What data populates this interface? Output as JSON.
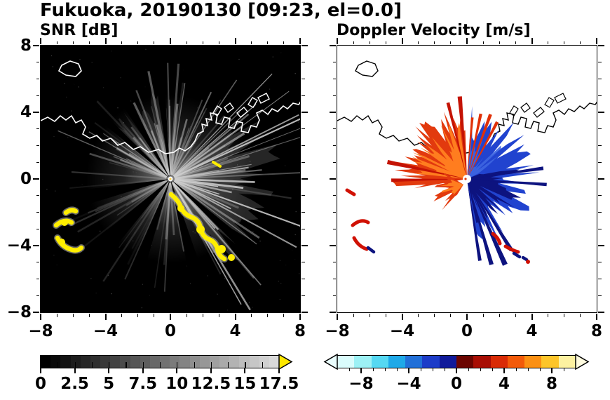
{
  "header": {
    "title": "Fukuoka, 20190130 [09:23, el=0.0]"
  },
  "panels": {
    "snr": {
      "title": "SNR [dB]"
    },
    "velocity": {
      "title": "Doppler Velocity [m/s]"
    }
  },
  "axes": {
    "xlim": [
      -8,
      8
    ],
    "ylim": [
      -8,
      8
    ],
    "x_tick_labels": [
      "−8",
      "−4",
      "0",
      "4",
      "8"
    ],
    "y_tick_labels": [
      "8",
      "4",
      "0",
      "−4",
      "−8"
    ]
  },
  "colorbars": {
    "snr": {
      "tick_labels": [
        "0",
        "2.5",
        "5",
        "7.5",
        "10",
        "12.5",
        "15",
        "17.5"
      ],
      "tick_values": [
        0,
        2.5,
        5,
        7.5,
        10,
        12.5,
        15,
        17.5
      ],
      "range": [
        0,
        17.5
      ],
      "gradient": [
        "#000000",
        "#d9d9d9"
      ],
      "arrow_color": "#ffe800"
    },
    "velocity": {
      "tick_labels": [
        "−8",
        "−4",
        "0",
        "4",
        "8"
      ],
      "tick_values": [
        -8,
        -4,
        0,
        4,
        8
      ],
      "range": [
        -10,
        10
      ],
      "palette": [
        "#dafcfc",
        "#9df1f5",
        "#55d8f2",
        "#1fa9e8",
        "#2270d8",
        "#1d3cc8",
        "#101a9a",
        "#6b0500",
        "#a80e04",
        "#d92b06",
        "#f25a09",
        "#fb9013",
        "#fdc52a",
        "#fdf1a0"
      ],
      "left_arrow_color": "#eafdfd",
      "right_arrow_color": "#fffce0"
    }
  },
  "chart_data": [
    {
      "type": "heatmap",
      "title": "SNR [dB]",
      "x_range": [
        -8,
        8
      ],
      "y_range": [
        -8,
        8
      ],
      "x_ticks": [
        -8,
        -4,
        0,
        4,
        8
      ],
      "y_ticks": [
        8,
        4,
        0,
        -4,
        -8
      ],
      "colorbar": {
        "range": [
          0,
          17.5
        ],
        "tick_values": [
          0,
          2.5,
          5,
          7.5,
          10,
          12.5,
          15,
          17.5
        ],
        "colormap": "black-to-light-gray grayscale, yellow overflow arrow at high end"
      },
      "features": [
        "radar at origin (0,0); faint gray radial beams emanate in all directions on black background",
        "brightest echo fan east-northeast of the radar; dark wedge gaps toward south-southwest",
        "yellow high-SNR clutter arc curving from (0,-1) to (3.5,-4.5)",
        "yellow clutter cluster near (-7.5,-1) to (-6,-3.5)",
        "white coastline of the bay across the top, small island near (-6.5,6.8), harbor jetty structures near (2,6)-(4,7)"
      ]
    },
    {
      "type": "heatmap",
      "title": "Doppler Velocity [m/s]",
      "x_range": [
        -8,
        8
      ],
      "y_range": [
        -8,
        8
      ],
      "x_ticks": [
        -8,
        -4,
        0,
        4,
        8
      ],
      "y_ticks": [
        8,
        4,
        0,
        -4,
        -8
      ],
      "colorbar": {
        "range": [
          -10,
          10
        ],
        "tick_values": [
          -8,
          -4,
          0,
          4,
          8
        ],
        "colormap": "pale-cyan to navy for negative, dark-red through orange to pale-yellow for positive"
      },
      "features": [
        "red/orange fan of positive velocities north-west to north of the radar out to ~4 km",
        "blue/navy fan of negative velocities east to south-east of the radar with long spikes down to (1.5,-4)",
        "small red/orange patch just west of the radar near (-1.5,-0.3)",
        "scattered red and dark clutter patches near (-7,-2) and (2.5,-4)",
        "black coastline identical to the SNR panel on a white background"
      ]
    }
  ]
}
